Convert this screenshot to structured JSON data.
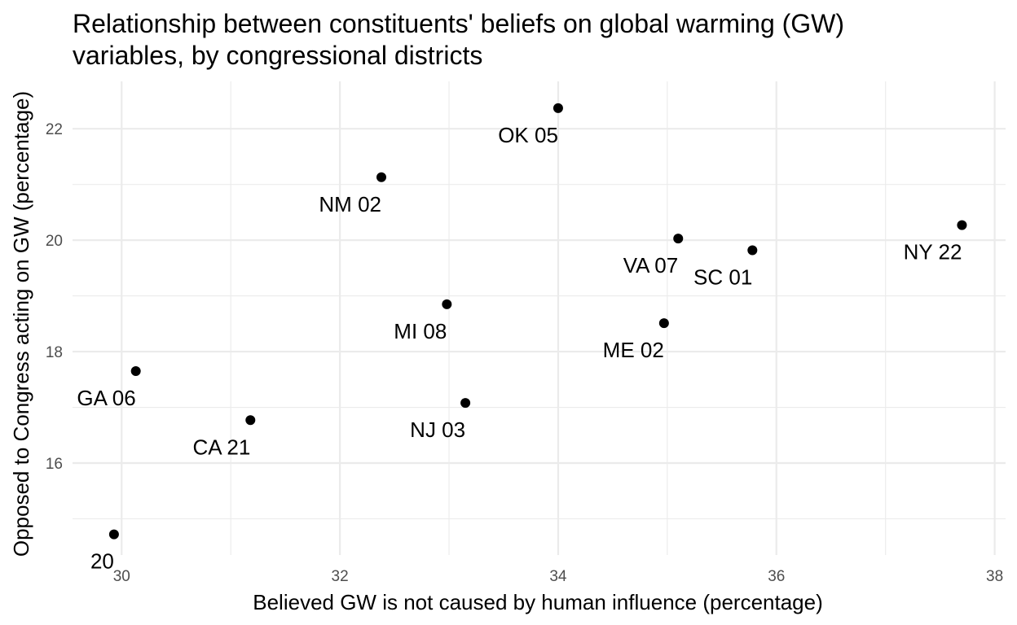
{
  "chart_data": {
    "type": "scatter",
    "title": [
      "Relationship between constituents' beliefs on global warming (GW)",
      "variables, by congressional districts"
    ],
    "xlabel": "Believed GW is not caused by human influence (percentage)",
    "ylabel": "Opposed to Congress acting on GW (percentage)",
    "xlim": [
      29.55,
      38.1
    ],
    "ylim": [
      14.35,
      22.85
    ],
    "x_ticks": [
      30,
      32,
      34,
      36,
      38
    ],
    "x_tick_labels": [
      "30",
      "32",
      "34",
      "36",
      "38"
    ],
    "y_ticks": [
      16,
      18,
      20,
      22
    ],
    "y_tick_labels": [
      "16",
      "18",
      "20",
      "22"
    ],
    "x_minor_ticks": [
      31,
      33,
      35,
      37
    ],
    "y_minor_ticks": [
      15,
      17,
      19,
      21
    ],
    "grid": true,
    "points": [
      {
        "label": "OK 05",
        "x": 34.0,
        "y": 22.37
      },
      {
        "label": "NM 02",
        "x": 32.38,
        "y": 21.13
      },
      {
        "label": "VA 07",
        "x": 35.1,
        "y": 20.03
      },
      {
        "label": "SC 01",
        "x": 35.78,
        "y": 19.82
      },
      {
        "label": "NY 22",
        "x": 37.7,
        "y": 20.27
      },
      {
        "label": "MI 08",
        "x": 32.98,
        "y": 18.85
      },
      {
        "label": "ME 02",
        "x": 34.97,
        "y": 18.51
      },
      {
        "label": "GA 06",
        "x": 30.13,
        "y": 17.65
      },
      {
        "label": "NJ 03",
        "x": 33.15,
        "y": 17.08
      },
      {
        "label": "CA 21",
        "x": 31.18,
        "y": 16.77
      },
      {
        "label": "20",
        "x": 29.93,
        "y": 14.72
      }
    ]
  }
}
